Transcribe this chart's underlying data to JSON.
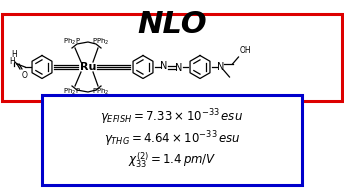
{
  "title": "NLO",
  "title_fontsize": 22,
  "title_fontweight": "bold",
  "title_fontstyle": "italic",
  "background_color": "#ffffff",
  "red_box_color": "#dd0000",
  "blue_box_color": "#0000cc",
  "line1": "$\\gamma_{EFISH} = 7.33 \\times 10^{-33}\\,esu$",
  "line2": "$\\gamma_{THG} = 4.64 \\times 10^{-33}\\,esu$",
  "line3": "$\\chi^{(2)}_{33} = 1.4\\, pm/V$",
  "text_fontsize": 8.5
}
